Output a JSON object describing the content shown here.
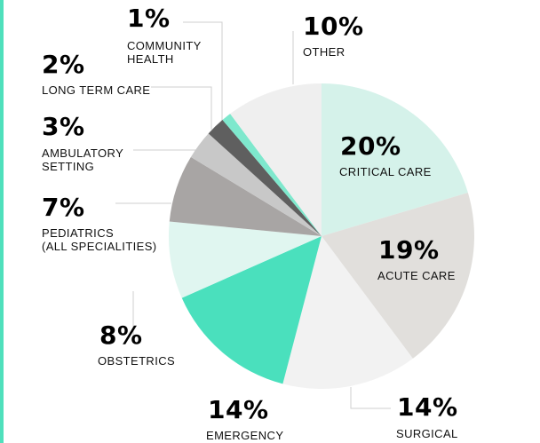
{
  "chart_data": {
    "type": "pie",
    "title": "",
    "slices": [
      {
        "pct": "20%",
        "value": 20,
        "label": [
          "CRITICAL CARE"
        ],
        "color": "#d5f2ea"
      },
      {
        "pct": "19%",
        "value": 19,
        "label": [
          "ACUTE CARE"
        ],
        "color": "#e1dfdc"
      },
      {
        "pct": "14%",
        "value": 14,
        "label": [
          "SURGICAL"
        ],
        "color": "#f2f2f2"
      },
      {
        "pct": "14%",
        "value": 14,
        "label": [
          "EMERGENCY"
        ],
        "color": "#4ae0bd"
      },
      {
        "pct": "8%",
        "value": 8,
        "label": [
          "OBSTETRICS"
        ],
        "color": "#e0f6f0"
      },
      {
        "pct": "7%",
        "value": 7,
        "label": [
          "PEDIATRICS",
          "(ALL SPECIALITIES)"
        ],
        "color": "#a8a5a4"
      },
      {
        "pct": "3%",
        "value": 3,
        "label": [
          "AMBULATORY",
          "SETTING"
        ],
        "color": "#c8c8c8"
      },
      {
        "pct": "2%",
        "value": 2,
        "label": [
          "LONG TERM CARE"
        ],
        "color": "#5f5f5f"
      },
      {
        "pct": "1%",
        "value": 1,
        "label": [
          "COMMUNITY",
          "HEALTH"
        ],
        "color": "#7ee8cd"
      },
      {
        "pct": "10%",
        "value": 10,
        "label": [
          "OTHER"
        ],
        "color": "#efefef"
      }
    ]
  }
}
